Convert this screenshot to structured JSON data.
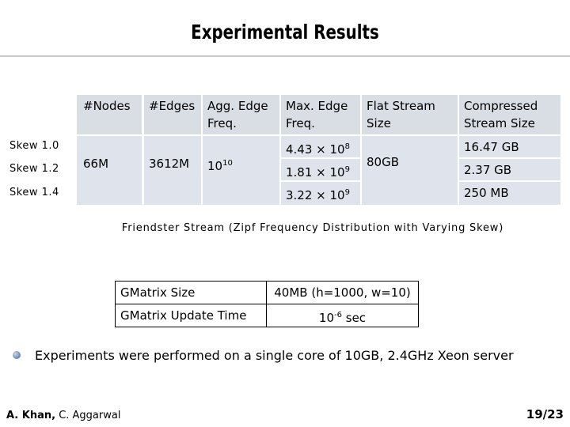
{
  "title": "Experimental Results",
  "table": {
    "header": [
      "#Nodes",
      "#Edges",
      "Agg. Edge Freq.",
      "Max. Edge Freq.",
      "Flat Stream Size",
      "Compressed Stream Size"
    ],
    "row_labels": [
      "Skew 1.0",
      "Skew 1.2",
      "Skew 1.4"
    ],
    "nodes": "66M",
    "edges": "3612M",
    "agg_freq": {
      "base": "10",
      "exp": "10"
    },
    "max_freq": [
      {
        "base": "4.43 × 10",
        "exp": "8"
      },
      {
        "base": "1.81 × 10",
        "exp": "9"
      },
      {
        "base": "3.22 × 10",
        "exp": "9"
      }
    ],
    "flat_size": "80GB",
    "compressed_size": [
      "16.47 GB",
      "2.37 GB",
      "250 MB"
    ],
    "caption": "Friendster Stream (Zipf Frequency Distribution with Varying Skew)"
  },
  "table2": {
    "rows": [
      [
        "GMatrix Size",
        "40MB (h=1000, w=10)"
      ],
      [
        "GMatrix Update Time",
        {
          "base": "10",
          "exp": "-6",
          "suffix": " sec"
        }
      ]
    ]
  },
  "bullet": "Experiments were performed on a single core of 10GB, 2.4GHz Xeon server",
  "footer": {
    "author_bold": "A. Khan,",
    "author_rest": " C. Aggarwal",
    "page": "19/23"
  }
}
